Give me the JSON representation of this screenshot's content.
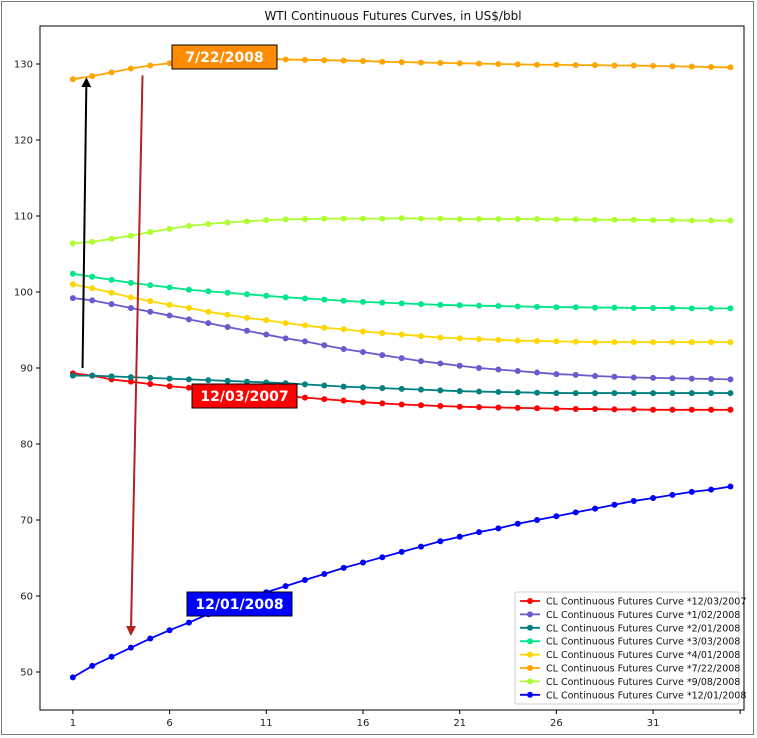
{
  "chart_data": {
    "type": "line",
    "title": "WTI Continuous Futures Curves, in US$/bbl",
    "xlabel": "",
    "ylabel": "",
    "xlim": [
      -0.7,
      35.7
    ],
    "ylim": [
      45,
      135
    ],
    "x_ticks": [
      1,
      6,
      11,
      16,
      21,
      26,
      31
    ],
    "y_ticks": [
      50,
      60,
      70,
      80,
      90,
      100,
      110,
      120,
      130
    ],
    "grid": false,
    "legend_position": "lower-right",
    "series": [
      {
        "name": "CL Continuous Futures Curve *12/03/2007",
        "color": "#ff0000",
        "values": [
          89.3,
          89.0,
          88.5,
          88.2,
          87.9,
          87.6,
          87.4,
          87.1,
          86.9,
          86.7,
          86.5,
          86.3,
          86.1,
          85.9,
          85.7,
          85.5,
          85.35,
          85.2,
          85.1,
          85.0,
          84.9,
          84.85,
          84.8,
          84.75,
          84.7,
          84.65,
          84.6,
          84.6,
          84.55,
          84.55,
          84.5,
          84.5,
          84.5,
          84.5,
          84.5
        ]
      },
      {
        "name": "CL Continuous Futures Curve *1/02/2008",
        "color": "#6a5acd",
        "values": [
          99.2,
          98.9,
          98.4,
          97.9,
          97.4,
          96.9,
          96.4,
          95.9,
          95.4,
          94.9,
          94.4,
          93.9,
          93.5,
          93.0,
          92.5,
          92.1,
          91.7,
          91.3,
          90.9,
          90.6,
          90.3,
          90.0,
          89.8,
          89.6,
          89.4,
          89.2,
          89.1,
          88.95,
          88.85,
          88.75,
          88.7,
          88.65,
          88.6,
          88.55,
          88.5
        ]
      },
      {
        "name": "CL Continuous Futures Curve *2/01/2008",
        "color": "#008080",
        "values": [
          89.0,
          89.0,
          88.9,
          88.8,
          88.7,
          88.6,
          88.5,
          88.4,
          88.3,
          88.2,
          88.1,
          88.0,
          87.85,
          87.7,
          87.55,
          87.45,
          87.35,
          87.25,
          87.15,
          87.05,
          86.95,
          86.9,
          86.85,
          86.8,
          86.75,
          86.7,
          86.7,
          86.7,
          86.7,
          86.7,
          86.7,
          86.7,
          86.7,
          86.7,
          86.7
        ]
      },
      {
        "name": "CL Continuous Futures Curve *3/03/2008",
        "color": "#00e68a",
        "values": [
          102.4,
          102.0,
          101.6,
          101.2,
          100.9,
          100.6,
          100.3,
          100.1,
          99.9,
          99.7,
          99.5,
          99.3,
          99.15,
          99.0,
          98.85,
          98.7,
          98.6,
          98.5,
          98.4,
          98.3,
          98.25,
          98.2,
          98.15,
          98.1,
          98.05,
          98.0,
          98.0,
          97.95,
          97.95,
          97.9,
          97.9,
          97.9,
          97.85,
          97.85,
          97.85
        ]
      },
      {
        "name": "CL Continuous Futures Curve *4/01/2008",
        "color": "#ffd700",
        "values": [
          101.0,
          100.5,
          99.9,
          99.3,
          98.8,
          98.3,
          97.9,
          97.4,
          97.0,
          96.6,
          96.3,
          95.9,
          95.6,
          95.3,
          95.1,
          94.8,
          94.6,
          94.4,
          94.2,
          94.0,
          93.9,
          93.8,
          93.7,
          93.6,
          93.55,
          93.5,
          93.45,
          93.4,
          93.4,
          93.4,
          93.4,
          93.4,
          93.4,
          93.4,
          93.4
        ]
      },
      {
        "name": "CL Continuous Futures Curve *7/22/2008",
        "color": "#ffa500",
        "values": [
          128.0,
          128.4,
          128.9,
          129.4,
          129.8,
          130.1,
          130.35,
          130.5,
          130.6,
          130.65,
          130.65,
          130.6,
          130.55,
          130.5,
          130.45,
          130.4,
          130.3,
          130.25,
          130.2,
          130.15,
          130.1,
          130.05,
          130.0,
          129.95,
          129.9,
          129.9,
          129.85,
          129.85,
          129.8,
          129.8,
          129.75,
          129.7,
          129.65,
          129.6,
          129.55
        ]
      },
      {
        "name": "CL Continuous Futures Curve *9/08/2008",
        "color": "#adff2f",
        "values": [
          106.4,
          106.6,
          107.0,
          107.4,
          107.9,
          108.3,
          108.7,
          108.95,
          109.15,
          109.3,
          109.45,
          109.55,
          109.6,
          109.65,
          109.65,
          109.65,
          109.65,
          109.7,
          109.65,
          109.65,
          109.6,
          109.6,
          109.6,
          109.6,
          109.6,
          109.55,
          109.55,
          109.5,
          109.5,
          109.5,
          109.45,
          109.45,
          109.4,
          109.4,
          109.4
        ]
      },
      {
        "name": "CL Continuous Futures Curve *12/01/2008",
        "color": "#0000ff",
        "values": [
          49.3,
          50.8,
          52.0,
          53.2,
          54.4,
          55.5,
          56.5,
          57.6,
          58.6,
          59.6,
          60.5,
          61.3,
          62.1,
          62.9,
          63.7,
          64.4,
          65.1,
          65.8,
          66.5,
          67.2,
          67.8,
          68.4,
          68.9,
          69.5,
          70.0,
          70.5,
          71.0,
          71.5,
          72.0,
          72.5,
          72.9,
          73.3,
          73.7,
          74.0,
          74.4
        ]
      }
    ],
    "annotations": [
      {
        "label": "7/22/2008",
        "color": "#ff8c00"
      },
      {
        "label": "12/03/2007",
        "color": "#ff0000"
      },
      {
        "label": "12/01/2008",
        "color": "#0000ff"
      }
    ],
    "arrows": [
      {
        "color": "#000000",
        "from": {
          "x": 1.5,
          "y": 90.0
        },
        "to": {
          "x": 1.7,
          "y": 128.0
        }
      },
      {
        "color": "#b22222",
        "from": {
          "x": 4.6,
          "y": 128.5
        },
        "to": {
          "x": 4.0,
          "y": 55.0
        }
      }
    ]
  }
}
